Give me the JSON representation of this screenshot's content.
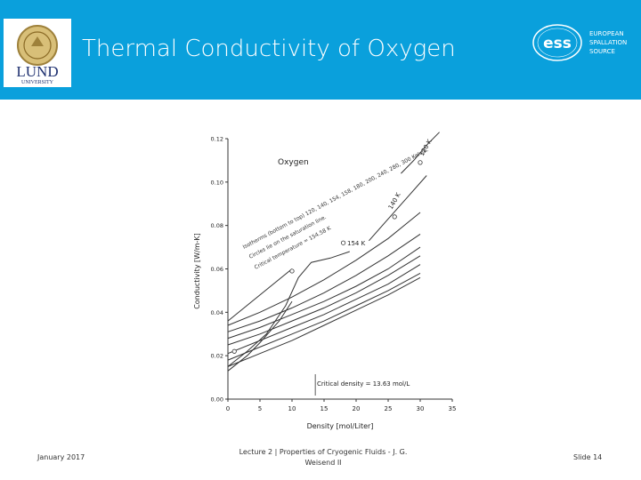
{
  "header": {
    "title": "Thermal Conductivity of Oxygen",
    "lund_logo": {
      "line1": "LUND",
      "line2": "UNIVERSITY"
    },
    "ess_logo": {
      "mark": "ess",
      "line1": "EUROPEAN",
      "line2": "SPALLATION",
      "line3": "SOURCE"
    },
    "background_color": "#0aa0dc"
  },
  "chart_data": {
    "type": "line",
    "title": "Oxygen",
    "xlabel": "Density [mol/Liter]",
    "ylabel": "Conductivity [W/m-K]",
    "xlim": [
      0,
      35
    ],
    "ylim": [
      0,
      0.12
    ],
    "xticks": [
      "0",
      "5",
      "10",
      "15",
      "20",
      "25",
      "30",
      "35"
    ],
    "yticks": [
      "0.00",
      "0.02",
      "0.04",
      "0.06",
      "0.08",
      "0.10",
      "0.12"
    ],
    "grid": false,
    "series": [
      {
        "x": [
          0,
          5,
          10,
          15,
          20,
          25,
          30
        ],
        "y": [
          0.034,
          0.04,
          0.047,
          0.055,
          0.064,
          0.074,
          0.086
        ]
      },
      {
        "x": [
          0,
          5,
          10,
          15,
          20,
          25,
          30
        ],
        "y": [
          0.031,
          0.036,
          0.042,
          0.049,
          0.057,
          0.066,
          0.076
        ]
      },
      {
        "x": [
          0,
          5,
          10,
          15,
          20,
          25,
          30
        ],
        "y": [
          0.028,
          0.033,
          0.039,
          0.045,
          0.052,
          0.06,
          0.07
        ]
      },
      {
        "x": [
          0,
          5,
          10,
          15,
          20,
          25,
          30
        ],
        "y": [
          0.025,
          0.03,
          0.036,
          0.042,
          0.049,
          0.057,
          0.066
        ]
      },
      {
        "x": [
          0,
          5,
          10,
          15,
          20,
          25,
          30
        ],
        "y": [
          0.021,
          0.027,
          0.033,
          0.039,
          0.046,
          0.053,
          0.062
        ]
      },
      {
        "x": [
          0,
          5,
          10,
          15,
          20,
          25,
          30
        ],
        "y": [
          0.018,
          0.024,
          0.03,
          0.036,
          0.043,
          0.05,
          0.058
        ]
      },
      {
        "x": [
          0,
          5,
          10,
          15,
          20,
          25,
          30
        ],
        "y": [
          0.015,
          0.021,
          0.027,
          0.034,
          0.041,
          0.048,
          0.056
        ]
      },
      {
        "x": [
          0,
          3,
          5,
          8,
          10
        ],
        "y": [
          0.013,
          0.02,
          0.026,
          0.036,
          0.045
        ]
      },
      {
        "x": [
          0,
          3,
          6,
          9,
          11,
          13,
          16,
          19
        ],
        "y": [
          0.015,
          0.022,
          0.03,
          0.043,
          0.056,
          0.063,
          0.065,
          0.068
        ]
      },
      {
        "x": [
          22,
          25,
          28,
          31
        ],
        "y": [
          0.073,
          0.083,
          0.093,
          0.103
        ]
      },
      {
        "x": [
          27,
          29,
          31,
          33
        ],
        "y": [
          0.104,
          0.11,
          0.117,
          0.123
        ]
      },
      {
        "x": [
          0,
          10
        ],
        "y": [
          0.036,
          0.06
        ]
      }
    ],
    "annotations": [
      "Isotherms (bottom to top) 120, 140, 154, 158, 180, 200, 240, 280, 300 Kelvin.",
      "Circles lie on the saturation line.",
      "Critical temperature = 154.58 K",
      "154 K",
      "140 K",
      "120 K",
      "Critical density = 13.63 mol/L"
    ],
    "point_markers": [
      {
        "x": 1,
        "y": 0.022
      },
      {
        "x": 10,
        "y": 0.059
      },
      {
        "x": 18,
        "y": 0.072
      },
      {
        "x": 26,
        "y": 0.084
      },
      {
        "x": 30,
        "y": 0.109
      }
    ]
  },
  "footer": {
    "date": "January 2017",
    "center_line1": "Lecture 2 | Properties of Cryogenic Fluids - J. G.",
    "center_line2": "Weisend II",
    "slide": "Slide 14"
  }
}
